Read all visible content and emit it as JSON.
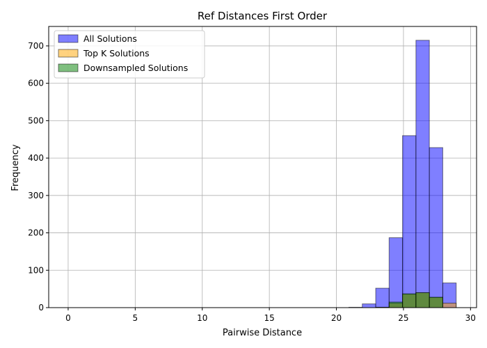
{
  "chart_data": {
    "type": "bar",
    "title": "Ref Distances First Order",
    "xlabel": "Pairwise Distance",
    "ylabel": "Frequency",
    "xlim": [
      -1.45,
      30.45
    ],
    "ylim": [
      0,
      752
    ],
    "x_ticks": [
      0,
      5,
      10,
      15,
      20,
      25,
      30
    ],
    "y_ticks": [
      0,
      100,
      200,
      300,
      400,
      500,
      600,
      700
    ],
    "grid": true,
    "legend_position": "top-left",
    "series": [
      {
        "name": "All Solutions",
        "color": "#0000ff",
        "alpha": 0.5,
        "bins": [
          {
            "x0": 20.93,
            "x1": 21.93,
            "value": 1
          },
          {
            "x0": 21.93,
            "x1": 22.93,
            "value": 10
          },
          {
            "x0": 22.93,
            "x1": 23.93,
            "value": 52
          },
          {
            "x0": 23.93,
            "x1": 24.93,
            "value": 187
          },
          {
            "x0": 24.93,
            "x1": 25.93,
            "value": 460
          },
          {
            "x0": 25.93,
            "x1": 26.93,
            "value": 715
          },
          {
            "x0": 26.93,
            "x1": 27.93,
            "value": 428
          },
          {
            "x0": 27.93,
            "x1": 28.93,
            "value": 66
          }
        ]
      },
      {
        "name": "Top K Solutions",
        "color": "#ffa500",
        "alpha": 0.5,
        "bins": [
          {
            "x0": 20.93,
            "x1": 21.93,
            "value": 0
          },
          {
            "x0": 21.93,
            "x1": 22.93,
            "value": 0
          },
          {
            "x0": 22.93,
            "x1": 23.93,
            "value": 1
          },
          {
            "x0": 23.93,
            "x1": 24.93,
            "value": 12
          },
          {
            "x0": 24.93,
            "x1": 25.93,
            "value": 36
          },
          {
            "x0": 25.93,
            "x1": 26.93,
            "value": 40
          },
          {
            "x0": 26.93,
            "x1": 27.93,
            "value": 27
          },
          {
            "x0": 27.93,
            "x1": 28.93,
            "value": 12
          }
        ]
      },
      {
        "name": "Downsampled Solutions",
        "color": "#008000",
        "alpha": 0.5,
        "bins": [
          {
            "x0": 20.93,
            "x1": 21.93,
            "value": 0
          },
          {
            "x0": 21.93,
            "x1": 22.93,
            "value": 0
          },
          {
            "x0": 22.93,
            "x1": 23.93,
            "value": 1
          },
          {
            "x0": 23.93,
            "x1": 24.93,
            "value": 15
          },
          {
            "x0": 24.93,
            "x1": 25.93,
            "value": 37
          },
          {
            "x0": 25.93,
            "x1": 26.93,
            "value": 40
          },
          {
            "x0": 26.93,
            "x1": 27.93,
            "value": 28
          },
          {
            "x0": 27.93,
            "x1": 28.93,
            "value": 0
          }
        ]
      }
    ]
  }
}
